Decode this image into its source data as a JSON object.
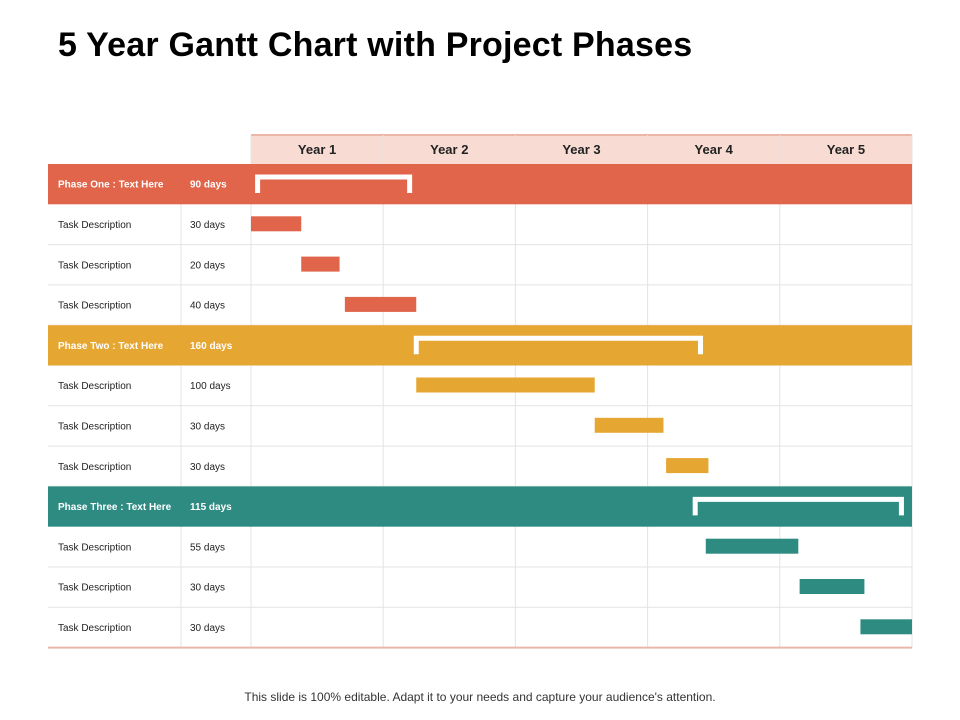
{
  "title": "5 Year Gantt Chart with Project Phases",
  "footer": "This slide is 100% editable. Adapt it to your needs and capture your audience's attention.",
  "colors": {
    "phase_one": "#e0654a",
    "phase_two": "#e6a632",
    "phase_three": "#2e8b82",
    "header_bg": "#f8dcd3",
    "grid_line": "#e3e3e3",
    "border_line": "#e9b6a8"
  },
  "chart_data": {
    "type": "gantt",
    "time_axis": [
      "Year 1",
      "Year 2",
      "Year 3",
      "Year 4",
      "Year 5"
    ],
    "phases": [
      {
        "label": "Phase One : Text Here",
        "duration": "90 days",
        "color_key": "phase_one",
        "span": [
          0.05,
          1.2
        ],
        "tasks": [
          {
            "label": "Task Description",
            "duration": "30 days",
            "span": [
              0.0,
              0.38
            ]
          },
          {
            "label": "Task Description",
            "duration": "20 days",
            "span": [
              0.38,
              0.67
            ]
          },
          {
            "label": "Task Description",
            "duration": "40 days",
            "span": [
              0.71,
              1.25
            ]
          }
        ]
      },
      {
        "label": "Phase Two : Text Here",
        "duration": "160 days",
        "color_key": "phase_two",
        "span": [
          1.25,
          3.4
        ],
        "tasks": [
          {
            "label": "Task Description",
            "duration": "100 days",
            "span": [
              1.25,
              2.6
            ]
          },
          {
            "label": "Task Description",
            "duration": "30 days",
            "span": [
              2.6,
              3.12
            ]
          },
          {
            "label": "Task Description",
            "duration": "30 days",
            "span": [
              3.14,
              3.46
            ]
          }
        ]
      },
      {
        "label": "Phase Three : Text Here",
        "duration": "115 days",
        "color_key": "phase_three",
        "span": [
          3.36,
          4.92
        ],
        "tasks": [
          {
            "label": "Task Description",
            "duration": "55 days",
            "span": [
              3.44,
              4.14
            ]
          },
          {
            "label": "Task Description",
            "duration": "30 days",
            "span": [
              4.15,
              4.64
            ]
          },
          {
            "label": "Task Description",
            "duration": "30 days",
            "span": [
              4.61,
              5.0
            ]
          }
        ]
      }
    ]
  }
}
